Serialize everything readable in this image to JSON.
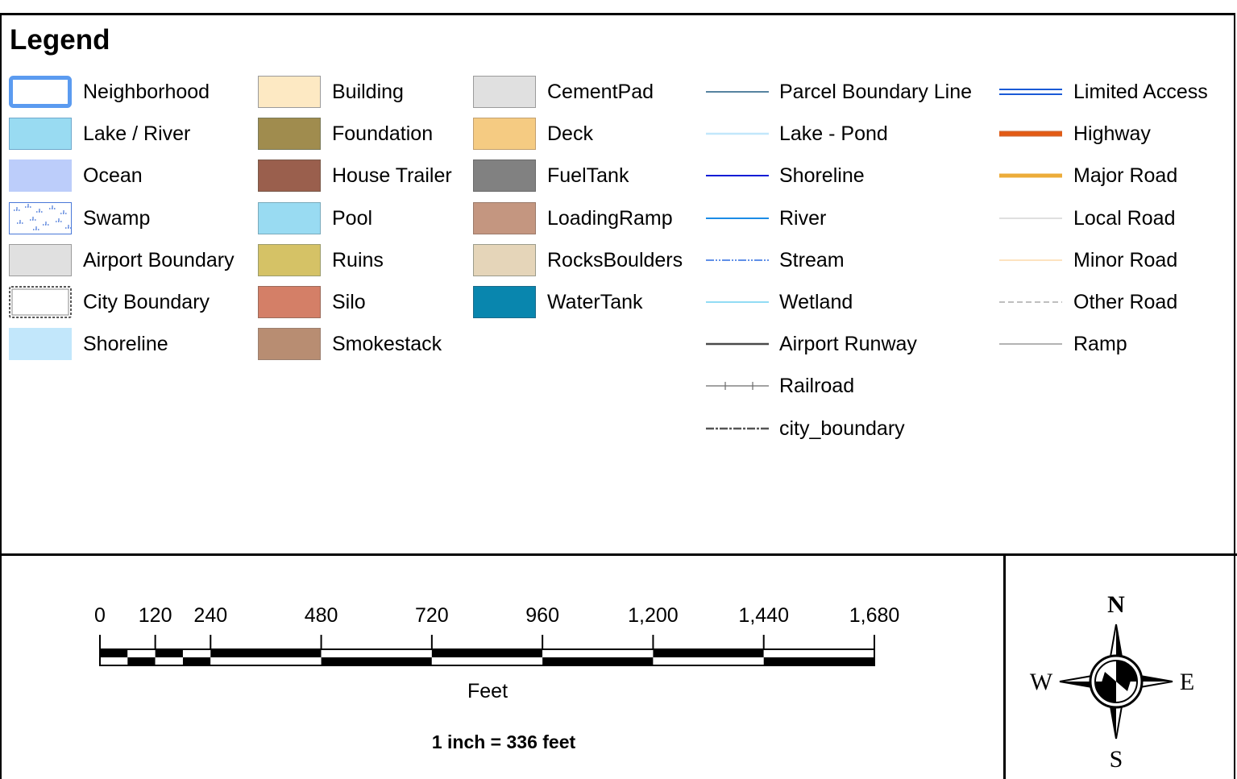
{
  "legend": {
    "title": "Legend",
    "polygons_a": [
      {
        "label": "Neighborhood",
        "symbol": "neighborhood-outline",
        "stroke": "#5b9bf0",
        "fill": "#ffffff"
      },
      {
        "label": "Lake / River",
        "symbol": "fill",
        "stroke": "#6fa8cc",
        "fill": "#99dbf2"
      },
      {
        "label": "Ocean",
        "symbol": "fill",
        "stroke": "#bccdfa",
        "fill": "#bccdfa"
      },
      {
        "label": "Swamp",
        "symbol": "swamp-pattern",
        "stroke": "#4a78d8",
        "fill": "#ffffff"
      },
      {
        "label": "Airport Boundary",
        "symbol": "fill",
        "stroke": "#9b9b9b",
        "fill": "#e0e0e0"
      },
      {
        "label": "City Boundary",
        "symbol": "dashed-outline",
        "stroke": "#555555",
        "fill": "#ffffff"
      },
      {
        "label": "Shoreline",
        "symbol": "fill",
        "stroke": "#c2e7fb",
        "fill": "#c2e7fb"
      }
    ],
    "polygons_b": [
      {
        "label": "Building",
        "symbol": "fill",
        "stroke": "#9b9b9b",
        "fill": "#fde9c3"
      },
      {
        "label": "Foundation",
        "symbol": "fill",
        "stroke": "#7a7a5a",
        "fill": "#a08c4e"
      },
      {
        "label": "House Trailer",
        "symbol": "fill",
        "stroke": "#7a5a4a",
        "fill": "#9a5f4d"
      },
      {
        "label": "Pool",
        "symbol": "fill",
        "stroke": "#7aaabb",
        "fill": "#99dbf2"
      },
      {
        "label": "Ruins",
        "symbol": "fill",
        "stroke": "#9b9b6b",
        "fill": "#d5c266"
      },
      {
        "label": "Silo",
        "symbol": "fill",
        "stroke": "#9b6a5a",
        "fill": "#d47f67"
      },
      {
        "label": "Smokestack",
        "symbol": "fill",
        "stroke": "#9b8070",
        "fill": "#b88d72"
      }
    ],
    "polygons_c": [
      {
        "label": "CementPad",
        "symbol": "fill",
        "stroke": "#9b9b9b",
        "fill": "#e0e0e0"
      },
      {
        "label": "Deck",
        "symbol": "fill",
        "stroke": "#c2a070",
        "fill": "#f5cb82"
      },
      {
        "label": "FuelTank",
        "symbol": "fill",
        "stroke": "#6b6b6b",
        "fill": "#818181"
      },
      {
        "label": "LoadingRamp",
        "symbol": "fill",
        "stroke": "#9b7a6a",
        "fill": "#c49680"
      },
      {
        "label": "RocksBoulders",
        "symbol": "fill",
        "stroke": "#9b9b8b",
        "fill": "#e5d5b9"
      },
      {
        "label": "WaterTank",
        "symbol": "fill",
        "stroke": "#1a6a8a",
        "fill": "#0986ae"
      }
    ],
    "lines_a": [
      {
        "label": "Parcel Boundary Line",
        "symbol": "line",
        "color": "#1e5a80",
        "width": 1.5
      },
      {
        "label": "Lake - Pond",
        "symbol": "line",
        "color": "#c2e7fb",
        "width": 2.5
      },
      {
        "label": "Shoreline",
        "symbol": "line",
        "color": "#0a1cd6",
        "width": 2
      },
      {
        "label": "River",
        "symbol": "line",
        "color": "#1b8ce6",
        "width": 2
      },
      {
        "label": "Stream",
        "symbol": "dash-dot-dot",
        "color": "#2c6be0",
        "width": 1.5
      },
      {
        "label": "Wetland",
        "symbol": "line",
        "color": "#6fd1f0",
        "width": 1.5
      },
      {
        "label": "Airport Runway",
        "symbol": "line",
        "color": "#4a4a4a",
        "width": 2.5
      },
      {
        "label": "Railroad",
        "symbol": "railroad",
        "color": "#6b6b6b",
        "width": 1.2
      },
      {
        "label": "city_boundary",
        "symbol": "dash-dot",
        "color": "#555555",
        "width": 2.5
      }
    ],
    "lines_b": [
      {
        "label": "Limited Access",
        "symbol": "double-line",
        "color": "#1a5ad6",
        "width": 2
      },
      {
        "label": "Highway",
        "symbol": "cased-line",
        "color": "#e35a14",
        "width": 5
      },
      {
        "label": "Major Road",
        "symbol": "line",
        "color": "#ecac39",
        "width": 5
      },
      {
        "label": "Local Road",
        "symbol": "line",
        "color": "#cccccc",
        "width": 1.2
      },
      {
        "label": "Minor Road",
        "symbol": "line",
        "color": "#fde3c0",
        "width": 2
      },
      {
        "label": "Other Road",
        "symbol": "dashed-line",
        "color": "#aaaaaa",
        "width": 1.5
      },
      {
        "label": "Ramp",
        "symbol": "line",
        "color": "#b3b3b3",
        "width": 2
      }
    ]
  },
  "scale_bar": {
    "ticks": [
      "0",
      "120",
      "240",
      "480",
      "720",
      "960",
      "1,200",
      "1,440",
      "1,680"
    ],
    "unit": "Feet",
    "ratio": "1 inch = 336 feet"
  },
  "north_arrow": {
    "n": "N",
    "s": "S",
    "e": "E",
    "w": "W"
  }
}
